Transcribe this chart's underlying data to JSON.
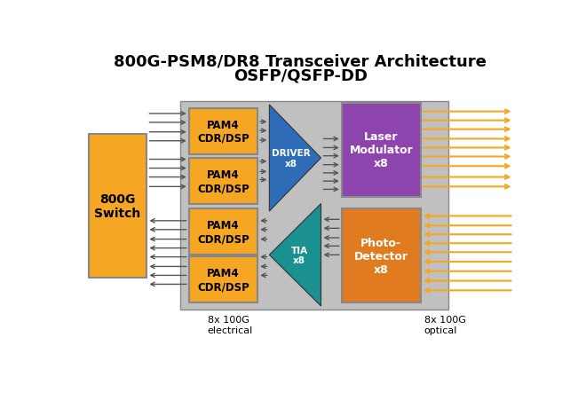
{
  "title_line1": "800G-PSM8/DR8 Transceiver Architecture",
  "title_line2": "OSFP/QSFP-DD",
  "title_fontsize": 13,
  "bg_color": "#ffffff",
  "colors": {
    "orange": "#F5A623",
    "dark_orange": "#E07B20",
    "purple": "#8E44AD",
    "teal": "#1A9090",
    "blue": "#2E6CB8",
    "light_gray": "#C0C0C0",
    "arrow_gray": "#555555",
    "edge_gray": "#888888"
  },
  "label_800G": "800G\nSwitch",
  "label_pam4": "PAM4\nCDR/DSP",
  "label_driver": "DRIVER\nx8",
  "label_tia": "TIA\nx8",
  "label_laser": "Laser\nModulator\nx8",
  "label_photo": "Photo-\nDetector\nx8",
  "label_elec": "8x 100G\nelectrical",
  "label_opt": "8x 100G\noptical"
}
